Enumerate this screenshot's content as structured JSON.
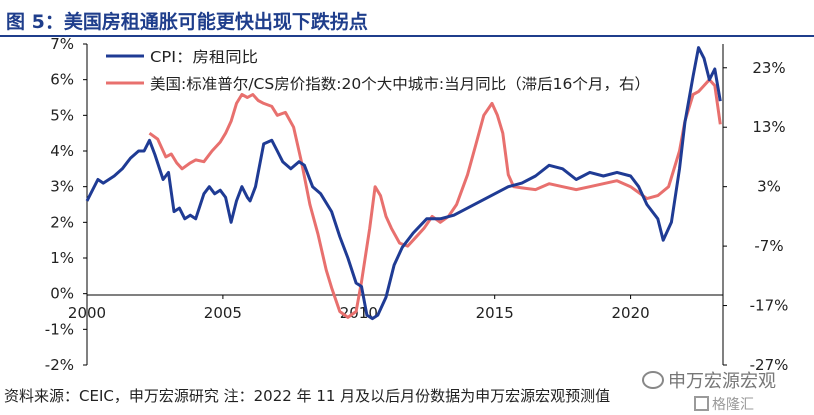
{
  "title": "图 5：美国房租通胀可能更快出现下跌拐点",
  "source_note": "资料来源：CEIC，申万宏源研究 注：2022 年 11 月及以后月份数据为申万宏源宏观预测值",
  "watermark": "申万宏源宏观",
  "logo_text": "格隆汇",
  "icons": {
    "watermark": "wechat-icon",
    "logo": "gelonghui-logo"
  },
  "chart_data": {
    "type": "line",
    "x_ticks": [
      "2000",
      "2005",
      "2010",
      "2015",
      "2020"
    ],
    "x_range": [
      2000.0,
      2023.4
    ],
    "left_axis": {
      "ticks": [
        "7%",
        "6%",
        "5%",
        "4%",
        "3%",
        "2%",
        "1%",
        "0%",
        "-1%",
        "-2%"
      ],
      "ylim": [
        -2,
        7
      ]
    },
    "right_axis": {
      "ticks": [
        "23%",
        "13%",
        "3%",
        "-7%",
        "-17%",
        "-27%"
      ],
      "ylim": [
        -27,
        27
      ]
    },
    "legend_placement": "top-left",
    "series": [
      {
        "name": "CPI：房租同比",
        "axis": "left",
        "color": "#1f3b94",
        "x": [
          2000.0,
          2000.4,
          2000.6,
          2001.0,
          2001.3,
          2001.6,
          2001.9,
          2002.1,
          2002.3,
          2002.5,
          2002.8,
          2003.0,
          2003.2,
          2003.4,
          2003.6,
          2003.8,
          2004.0,
          2004.3,
          2004.5,
          2004.7,
          2004.9,
          2005.1,
          2005.3,
          2005.5,
          2005.7,
          2005.9,
          2006.0,
          2006.2,
          2006.5,
          2006.8,
          2007.0,
          2007.2,
          2007.5,
          2007.8,
          2008.0,
          2008.3,
          2008.6,
          2009.0,
          2009.3,
          2009.6,
          2009.9,
          2010.1,
          2010.3,
          2010.5,
          2010.7,
          2011.0,
          2011.3,
          2011.6,
          2012.0,
          2012.5,
          2013.0,
          2013.5,
          2014.0,
          2014.5,
          2015.0,
          2015.5,
          2016.0,
          2016.5,
          2017.0,
          2017.5,
          2018.0,
          2018.5,
          2019.0,
          2019.5,
          2020.0,
          2020.3,
          2020.6,
          2021.0,
          2021.2,
          2021.5,
          2021.8,
          2022.0,
          2022.3,
          2022.5,
          2022.7,
          2022.9,
          2023.1,
          2023.3
        ],
        "values": [
          2.6,
          3.2,
          3.1,
          3.3,
          3.5,
          3.8,
          4.0,
          4.0,
          4.3,
          3.9,
          3.2,
          3.4,
          2.3,
          2.4,
          2.1,
          2.2,
          2.1,
          2.8,
          3.0,
          2.8,
          2.9,
          2.7,
          2.0,
          2.6,
          3.0,
          2.7,
          2.6,
          3.0,
          4.2,
          4.3,
          4.0,
          3.7,
          3.5,
          3.7,
          3.6,
          3.0,
          2.8,
          2.3,
          1.6,
          1.0,
          0.3,
          0.2,
          -0.6,
          -0.7,
          -0.6,
          -0.1,
          0.8,
          1.3,
          1.7,
          2.1,
          2.1,
          2.2,
          2.4,
          2.6,
          2.8,
          3.0,
          3.1,
          3.3,
          3.6,
          3.5,
          3.2,
          3.4,
          3.3,
          3.4,
          3.3,
          3.0,
          2.5,
          2.1,
          1.5,
          2.0,
          3.5,
          4.8,
          6.1,
          6.9,
          6.6,
          6.0,
          6.3,
          5.4
        ]
      },
      {
        "name": "美国:标准普尔/CS房价指数:20个大中城市:当月同比（滞后16个月，右）",
        "axis": "right",
        "color": "#e8706e",
        "x": [
          2002.3,
          2002.6,
          2002.9,
          2003.1,
          2003.3,
          2003.5,
          2003.8,
          2004.0,
          2004.3,
          2004.6,
          2004.9,
          2005.1,
          2005.3,
          2005.5,
          2005.7,
          2005.9,
          2006.1,
          2006.3,
          2006.5,
          2006.8,
          2007.0,
          2007.3,
          2007.6,
          2007.9,
          2008.2,
          2008.5,
          2008.8,
          2009.0,
          2009.3,
          2009.6,
          2009.9,
          2010.1,
          2010.4,
          2010.6,
          2010.8,
          2011.0,
          2011.2,
          2011.5,
          2011.8,
          2012.1,
          2012.4,
          2012.7,
          2013.0,
          2013.3,
          2013.6,
          2014.0,
          2014.3,
          2014.6,
          2014.9,
          2015.1,
          2015.3,
          2015.5,
          2015.7,
          2016.0,
          2016.5,
          2017.0,
          2017.5,
          2018.0,
          2018.5,
          2019.0,
          2019.5,
          2020.0,
          2020.3,
          2020.6,
          2021.0,
          2021.4,
          2021.8,
          2022.0,
          2022.3,
          2022.5,
          2022.7,
          2022.9,
          2023.1,
          2023.3
        ],
        "values": [
          12,
          11,
          8,
          8.5,
          7,
          6,
          7,
          7.5,
          7.2,
          9,
          10.5,
          12,
          14,
          17,
          18.5,
          18,
          18.5,
          17.5,
          17,
          16.5,
          15,
          15.5,
          13,
          7,
          0,
          -5,
          -11,
          -14,
          -18,
          -19,
          -18,
          -13,
          -4,
          3,
          1.5,
          -2,
          -4,
          -6.5,
          -7,
          -5.5,
          -4,
          -2,
          -3,
          -2,
          0,
          5,
          10,
          15,
          17,
          15,
          12,
          5,
          3,
          2.8,
          2.5,
          3.5,
          3,
          2.5,
          3,
          3.5,
          4,
          3,
          2,
          1,
          1.5,
          3,
          9,
          14,
          18.5,
          19,
          20,
          21,
          20,
          13.5
        ]
      }
    ]
  }
}
